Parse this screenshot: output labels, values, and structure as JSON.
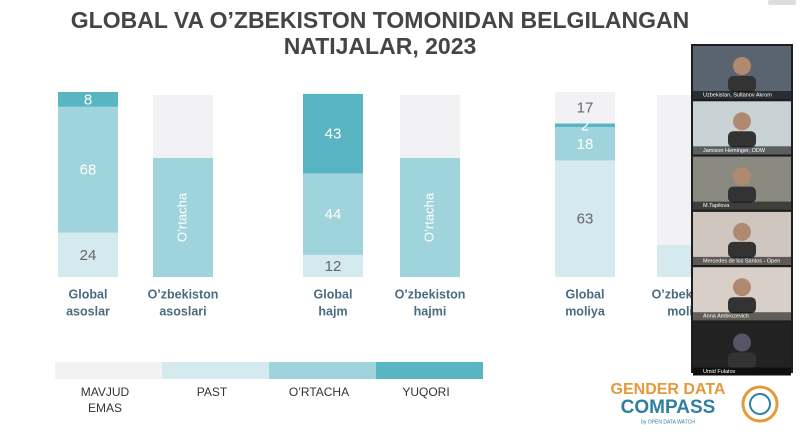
{
  "slide": {
    "title": [
      "GLOBAL VA O’ZBEKISTON TOMONIDAN BELGILANGAN",
      "NATIJALAR, 2023"
    ],
    "legend": [
      {
        "name": [
          "MAVJUD",
          "EMAS"
        ],
        "color": "#f2f2f4"
      },
      {
        "name": [
          "PAST"
        ],
        "color": "#d5eaef"
      },
      {
        "name": [
          "O’RTACHA"
        ],
        "color": "#9fd4dc"
      },
      {
        "name": [
          "YUQORI"
        ],
        "color": "#5ab5c3"
      }
    ],
    "groups": [
      {
        "label": [
          "Global",
          "asoslar"
        ],
        "values": [
          null,
          24,
          68,
          8
        ]
      },
      {
        "label": [
          "O’zbekiston",
          "asoslari"
        ],
        "level": "O’rtacha",
        "color": "#9fd4dc"
      },
      {
        "label": [
          "Global",
          "hajm"
        ],
        "values": [
          null,
          12,
          44,
          43
        ]
      },
      {
        "label": [
          "O’zbekiston",
          "hajmi"
        ],
        "level": "O’rtacha",
        "color": "#9fd4dc"
      },
      {
        "label": [
          "Global",
          "moliya"
        ],
        "values": [
          17,
          63,
          18,
          2
        ]
      },
      {
        "label": [
          "O’zbekiston",
          "moliya"
        ],
        "level": "LOW",
        "color": "#d5eaef"
      }
    ],
    "logo": {
      "line1": "GENDER DATA",
      "line2": "COMPASS",
      "by": "by OPEN DATA WATCH"
    }
  },
  "participants": [
    "Uzbekistan, Sultanov Akrom",
    "Jamison Heminger, ODW",
    "M.Tapilova",
    "Mercedes de los Santos - Open",
    "Anna Ambrozevich",
    "Umid Fulatov"
  ]
}
